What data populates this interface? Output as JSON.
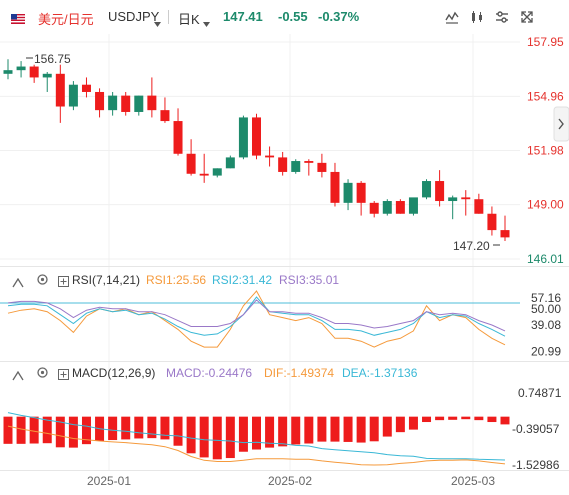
{
  "header": {
    "pair_cn": "美元/日元",
    "symbol": "USDJPY",
    "period": "日K",
    "price": "147.41",
    "change": "-0.55",
    "change_pct": "-0.37%",
    "flag_icon": "us-flag-icon"
  },
  "colors": {
    "up": "#1d8a6b",
    "down": "#ee1c1c",
    "rsi1": "#f59a3c",
    "rsi2": "#3ab8d6",
    "rsi3": "#9a78c8",
    "dif": "#f59a3c",
    "dea": "#3ab8d6",
    "price_label": "#e5322d",
    "axis_text": "#3a3a3a"
  },
  "price_axis": [
    "157.95",
    "154.96",
    "151.98",
    "149.00",
    "146.01"
  ],
  "rsi_axis": [
    "57.16",
    "50.00",
    "39.08",
    "20.99"
  ],
  "macd_axis": [
    "0.74871",
    "-0.39057",
    "-1.52986"
  ],
  "date_axis": [
    "2025-01",
    "2025-02",
    "2025-03"
  ],
  "rsi": {
    "label": "RSI(7,14,21)",
    "rsi1": "RSI1:25.56",
    "rsi2": "RSI2:31.42",
    "rsi3": "RSI3:35.01"
  },
  "macd": {
    "label": "MACD(12,26,9)",
    "macd": "MACD:-0.24476",
    "dif": "DIF:-1.49374",
    "dea": "DEA:-1.37136"
  },
  "chart_data": {
    "type": "candlestick",
    "annotations": {
      "high": "156.75",
      "low": "147.20"
    },
    "candles": [
      [
        156.2,
        157.0,
        156.4,
        155.9
      ],
      [
        156.4,
        156.9,
        156.6,
        156.0
      ],
      [
        156.6,
        156.7,
        156.0,
        155.7
      ],
      [
        156.0,
        156.3,
        156.2,
        155.2
      ],
      [
        156.2,
        156.7,
        154.4,
        153.5
      ],
      [
        154.4,
        155.8,
        155.6,
        154.2
      ],
      [
        155.6,
        156.0,
        155.2,
        154.9
      ],
      [
        155.2,
        155.4,
        154.2,
        153.8
      ],
      [
        154.2,
        155.2,
        155.0,
        153.9
      ],
      [
        155.0,
        155.2,
        154.1,
        153.9
      ],
      [
        154.1,
        155.0,
        155.0,
        153.9
      ],
      [
        155.0,
        156.0,
        154.2,
        153.8
      ],
      [
        154.2,
        154.9,
        153.6,
        153.5
      ],
      [
        153.6,
        154.3,
        151.8,
        151.7
      ],
      [
        151.8,
        152.6,
        150.7,
        150.6
      ],
      [
        150.7,
        151.8,
        150.6,
        150.2
      ],
      [
        150.6,
        151.0,
        151.0,
        150.5
      ],
      [
        151.0,
        151.7,
        151.6,
        151.0
      ],
      [
        151.6,
        153.9,
        153.8,
        151.5
      ],
      [
        153.8,
        154.0,
        151.7,
        151.5
      ],
      [
        151.7,
        152.2,
        151.6,
        151.1
      ],
      [
        151.6,
        151.9,
        150.8,
        150.6
      ],
      [
        150.8,
        151.5,
        151.4,
        150.7
      ],
      [
        151.4,
        151.5,
        151.3,
        150.6
      ],
      [
        151.3,
        151.8,
        150.8,
        150.5
      ],
      [
        150.8,
        151.3,
        149.1,
        148.9
      ],
      [
        149.1,
        150.4,
        150.2,
        148.7
      ],
      [
        150.2,
        150.3,
        149.1,
        148.4
      ],
      [
        149.1,
        149.2,
        148.5,
        148.3
      ],
      [
        148.5,
        149.3,
        149.2,
        148.4
      ],
      [
        149.2,
        149.3,
        148.5,
        148.5
      ],
      [
        148.5,
        149.3,
        149.4,
        148.4
      ],
      [
        149.4,
        150.4,
        150.3,
        149.3
      ],
      [
        150.3,
        150.9,
        149.2,
        148.9
      ],
      [
        149.2,
        149.5,
        149.4,
        148.2
      ],
      [
        149.4,
        149.8,
        149.3,
        148.4
      ],
      [
        149.3,
        149.6,
        148.5,
        148.5
      ],
      [
        148.5,
        148.9,
        147.6,
        147.3
      ],
      [
        147.6,
        148.4,
        147.2,
        147.0
      ]
    ],
    "rsi_series": {
      "RSI1": [
        47,
        49,
        50,
        48,
        42,
        34,
        45,
        50,
        48,
        50,
        46,
        48,
        42,
        36,
        28,
        24,
        24,
        36,
        52,
        62,
        46,
        44,
        42,
        44,
        40,
        30,
        30,
        28,
        24,
        28,
        30,
        35,
        52,
        42,
        46,
        44,
        36,
        30,
        25.56
      ],
      "RSI2": [
        52,
        53,
        53,
        52,
        46,
        40,
        47,
        50,
        48,
        49,
        46,
        47,
        43,
        38,
        34,
        32,
        33,
        38,
        46,
        58,
        48,
        47,
        46,
        46,
        42,
        36,
        36,
        35,
        32,
        34,
        36,
        40,
        48,
        44,
        46,
        45,
        40,
        36,
        31.42
      ],
      "RSI3": [
        54,
        55,
        55,
        54,
        50,
        44,
        49,
        51,
        50,
        50,
        48,
        48,
        46,
        42,
        38,
        38,
        38,
        40,
        46,
        56,
        48,
        48,
        47,
        47,
        44,
        40,
        40,
        39,
        37,
        38,
        40,
        42,
        48,
        46,
        47,
        46,
        42,
        39,
        35.01
      ]
    },
    "macd_series": {
      "HIST": [
        -0.86,
        -0.86,
        -0.85,
        -0.84,
        -0.97,
        -0.98,
        -0.87,
        -0.77,
        -0.74,
        -0.72,
        -0.69,
        -0.68,
        -0.72,
        -0.92,
        -1.16,
        -1.29,
        -1.35,
        -1.31,
        -1.11,
        -1.04,
        -0.98,
        -0.94,
        -0.88,
        -0.85,
        -0.79,
        -0.79,
        -0.8,
        -0.82,
        -0.78,
        -0.63,
        -0.49,
        -0.41,
        -0.17,
        -0.11,
        -0.1,
        -0.08,
        -0.11,
        -0.17,
        -0.24476
      ],
      "DIF": [
        -0.3,
        -0.39,
        -0.46,
        -0.53,
        -0.61,
        -0.69,
        -0.73,
        -0.77,
        -0.8,
        -0.82,
        -0.86,
        -0.89,
        -0.95,
        -1.07,
        -1.26,
        -1.38,
        -1.42,
        -1.42,
        -1.38,
        -1.33,
        -1.33,
        -1.33,
        -1.35,
        -1.35,
        -1.4,
        -1.44,
        -1.48,
        -1.52,
        -1.53,
        -1.52,
        -1.48,
        -1.45,
        -1.4,
        -1.38,
        -1.38,
        -1.37,
        -1.4,
        -1.45,
        -1.49374
      ],
      "DEA": [
        0.13,
        0.04,
        -0.03,
        -0.11,
        -0.17,
        -0.25,
        -0.3,
        -0.38,
        -0.43,
        -0.46,
        -0.51,
        -0.55,
        -0.59,
        -0.61,
        -0.68,
        -0.73,
        -0.75,
        -0.77,
        -0.82,
        -0.81,
        -0.84,
        -0.86,
        -0.91,
        -0.93,
        -1.01,
        -1.05,
        -1.08,
        -1.11,
        -1.14,
        -1.2,
        -1.24,
        -1.25,
        -1.32,
        -1.33,
        -1.33,
        -1.33,
        -1.35,
        -1.36,
        -1.37136
      ]
    }
  }
}
